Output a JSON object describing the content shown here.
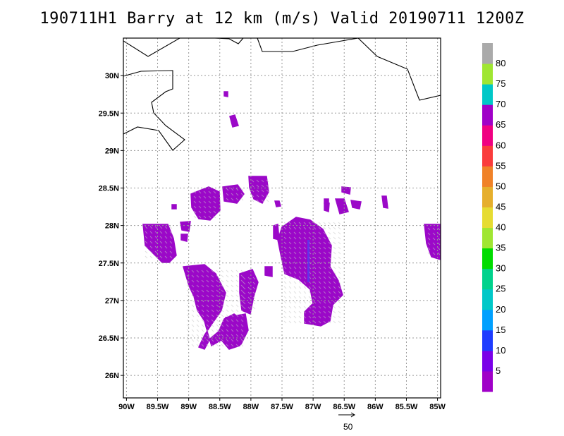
{
  "title": "190711H1 Barry at 12 km (m/s) Valid 20190711 1200Z",
  "map": {
    "lat_range": [
      25.7,
      30.5
    ],
    "lon_range": [
      -90.05,
      -84.95
    ],
    "lat_ticks": [
      {
        "value": 26.0,
        "label": "26N"
      },
      {
        "value": 26.5,
        "label": "26.5N"
      },
      {
        "value": 27.0,
        "label": "27N"
      },
      {
        "value": 27.5,
        "label": "27.5N"
      },
      {
        "value": 28.0,
        "label": "28N"
      },
      {
        "value": 28.5,
        "label": "28.5N"
      },
      {
        "value": 29.0,
        "label": "29N"
      },
      {
        "value": 29.5,
        "label": "29.5N"
      },
      {
        "value": 30.0,
        "label": "30N"
      }
    ],
    "lon_ticks": [
      {
        "value": -90.0,
        "label": "90W"
      },
      {
        "value": -89.5,
        "label": "89.5W"
      },
      {
        "value": -89.0,
        "label": "89W"
      },
      {
        "value": -88.5,
        "label": "88.5W"
      },
      {
        "value": -88.0,
        "label": "88W"
      },
      {
        "value": -87.5,
        "label": "87.5W"
      },
      {
        "value": -87.0,
        "label": "87W"
      },
      {
        "value": -86.5,
        "label": "86.5W"
      },
      {
        "value": -86.0,
        "label": "86W"
      },
      {
        "value": -85.5,
        "label": "85.5W"
      },
      {
        "value": -85.0,
        "label": "85W"
      }
    ],
    "grid": "dotted",
    "coastline_color": "#000000",
    "wind_fill_color": "#9b08c8",
    "wind_speed_range": "0-5 m/s"
  },
  "colorbar": {
    "colors": [
      "#a000c8",
      "#7a00e8",
      "#1e3cff",
      "#00a0ff",
      "#00c8c8",
      "#00d28c",
      "#00dc00",
      "#a0e632",
      "#e6dc32",
      "#e6af2d",
      "#f08228",
      "#fa3c3c",
      "#f00082",
      "#a000c8",
      "#00c8c8",
      "#a0e632",
      "#aaaaaa"
    ],
    "labels": [
      "5",
      "10",
      "15",
      "20",
      "25",
      "30",
      "35",
      "40",
      "45",
      "50",
      "55",
      "60",
      "65",
      "70",
      "75",
      "80"
    ]
  },
  "reference_vector": {
    "label": "50"
  }
}
